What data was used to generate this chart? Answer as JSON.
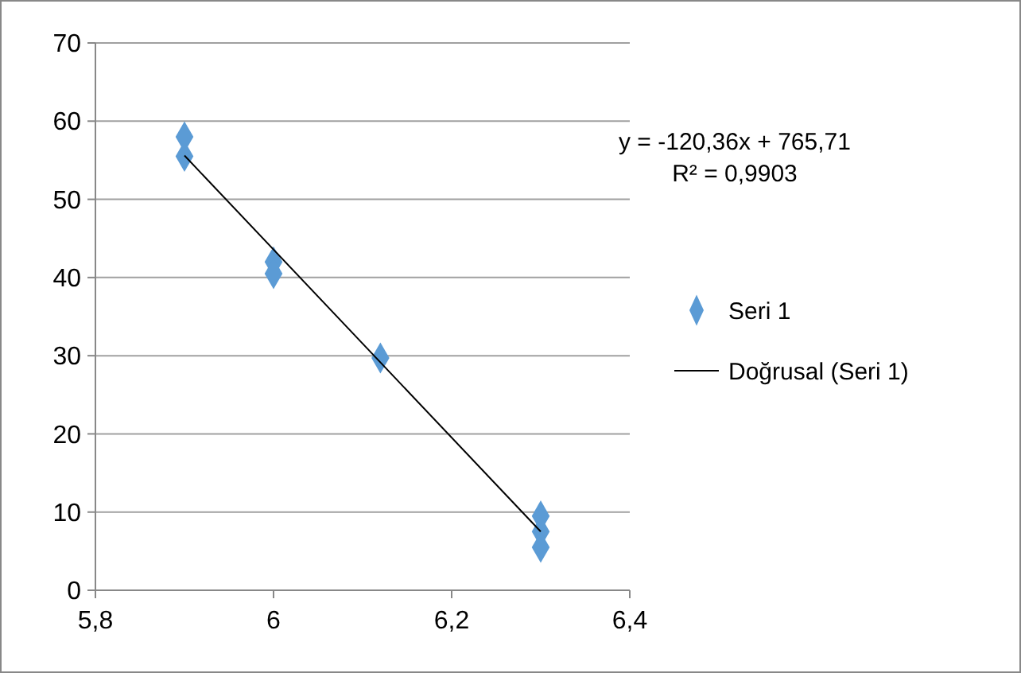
{
  "chart_data": {
    "type": "scatter",
    "xlim": [
      5.8,
      6.4
    ],
    "xticks": [
      {
        "value": 5.8,
        "label": "5,8"
      },
      {
        "value": 6,
        "label": "6"
      },
      {
        "value": 6.2,
        "label": "6,2"
      },
      {
        "value": 6.4,
        "label": "6,4"
      }
    ],
    "ylim": [
      0,
      70
    ],
    "yticks": [
      0,
      10,
      20,
      30,
      40,
      50,
      60,
      70
    ],
    "grid": "y",
    "legend": "right",
    "series": [
      {
        "name": "Seri 1",
        "color": "#5b9bd5",
        "marker": "diamond",
        "x": [
          5.9,
          5.9,
          6,
          6,
          6.12,
          6.3,
          6.3,
          6.3
        ],
        "values": [
          58,
          55.5,
          42,
          40.5,
          29.7,
          9.5,
          7.5,
          5.5
        ]
      },
      {
        "name": "Doğrusal (Seri 1)",
        "type": "line",
        "marker": "none",
        "color": "#000000",
        "x": [
          5.9,
          6.3
        ],
        "values": [
          55.6,
          7.5
        ]
      }
    ],
    "annotations": [
      "y = -120,36x + 765,71",
      "R² = 0,9903"
    ]
  }
}
